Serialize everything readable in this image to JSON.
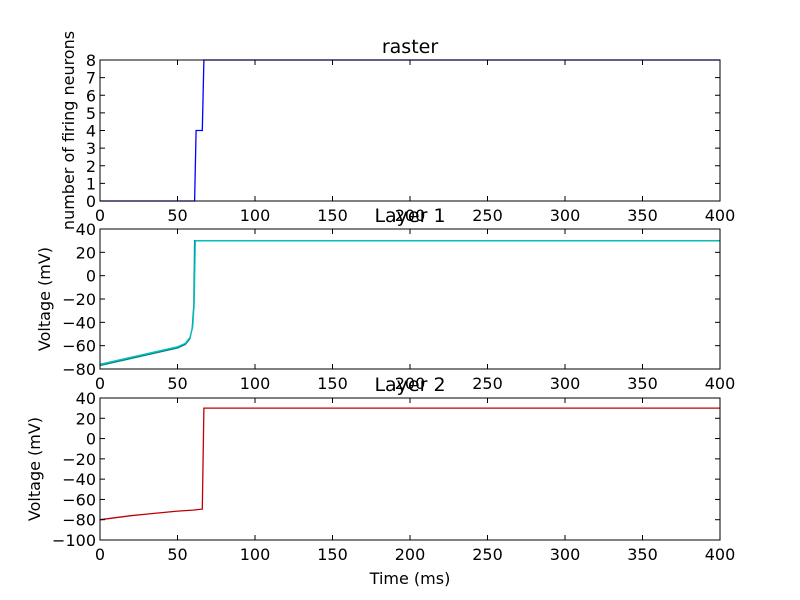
{
  "chart_data": [
    {
      "type": "line",
      "title": "raster",
      "xlabel": "",
      "ylabel": "number of firing neurons",
      "xlim": [
        0,
        400
      ],
      "ylim": [
        0,
        8
      ],
      "xticks": [
        0,
        50,
        100,
        150,
        200,
        250,
        300,
        350,
        400
      ],
      "yticks": [
        0,
        1,
        2,
        3,
        4,
        5,
        6,
        7,
        8
      ],
      "grid": false,
      "series": [
        {
          "color": "#0000ff",
          "x": [
            0,
            61,
            62,
            63,
            66,
            67,
            68,
            70,
            400
          ],
          "y": [
            0,
            0,
            4,
            4,
            4,
            8,
            8,
            8,
            8
          ]
        }
      ]
    },
    {
      "type": "line",
      "title": "Layer 1",
      "xlabel": "",
      "ylabel": "Voltage (mV)",
      "xlim": [
        0,
        400
      ],
      "ylim": [
        -80,
        40
      ],
      "xticks": [
        0,
        50,
        100,
        150,
        200,
        250,
        300,
        350,
        400
      ],
      "yticks": [
        -80,
        -60,
        -40,
        -20,
        0,
        20,
        40
      ],
      "grid": false,
      "series": [
        {
          "color": "#008080",
          "x": [
            0,
            10,
            20,
            30,
            40,
            50,
            55,
            58,
            59.5,
            60.5,
            61,
            400
          ],
          "y": [
            -77,
            -74,
            -71,
            -68,
            -65,
            -62,
            -59,
            -54,
            -45,
            -25,
            30,
            30
          ]
        },
        {
          "color": "#00bfbf",
          "x": [
            0,
            10,
            20,
            30,
            40,
            50,
            55,
            58,
            59.8,
            60.8,
            61.5,
            400
          ],
          "y": [
            -76,
            -73,
            -70,
            -67,
            -64,
            -61,
            -58,
            -53,
            -44,
            -24,
            30,
            30
          ]
        }
      ]
    },
    {
      "type": "line",
      "title": "Layer 2",
      "xlabel": "Time (ms)",
      "ylabel": "Voltage (mV)",
      "xlim": [
        0,
        400
      ],
      "ylim": [
        -100,
        40
      ],
      "xticks": [
        0,
        50,
        100,
        150,
        200,
        250,
        300,
        350,
        400
      ],
      "yticks": [
        -100,
        -80,
        -60,
        -40,
        -20,
        0,
        20,
        40
      ],
      "grid": false,
      "series": [
        {
          "color": "#bf0000",
          "x": [
            0,
            10,
            20,
            30,
            40,
            50,
            60,
            66,
            67,
            400
          ],
          "y": [
            -80,
            -78,
            -76,
            -74.5,
            -73,
            -71.5,
            -70.5,
            -69.5,
            30,
            30
          ]
        }
      ]
    }
  ]
}
